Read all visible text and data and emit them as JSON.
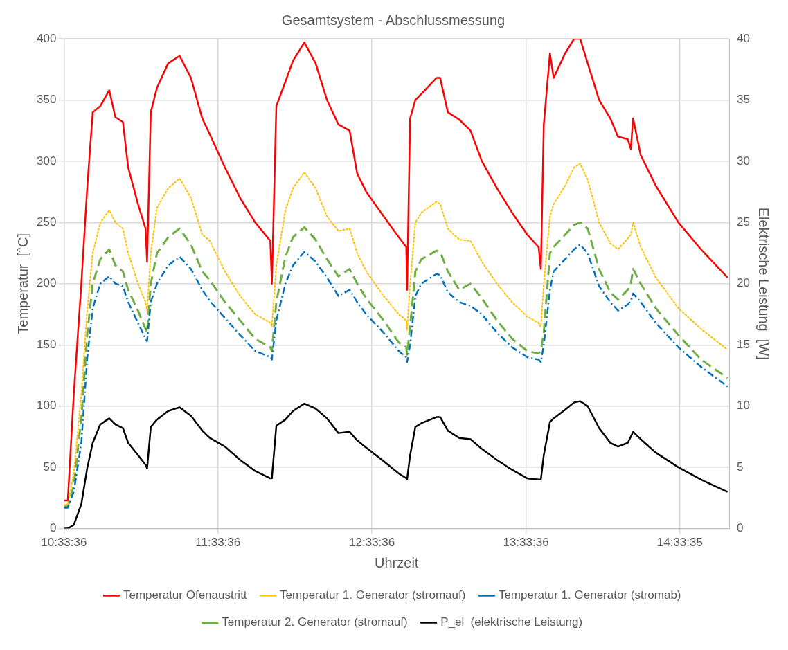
{
  "chart_data": {
    "type": "line",
    "title": "Gesamtsystem - Abschlussmessung",
    "xlabel": "Uhrzeit",
    "ylabel": "Temperatur  [°C]",
    "y2label": "Elektrische Leistung  [W]",
    "x": [
      10.56,
      10.585,
      10.624,
      10.673,
      10.712,
      10.747,
      10.796,
      10.854,
      10.894,
      10.943,
      10.977,
      11.041,
      11.09,
      11.1,
      11.124,
      11.164,
      11.237,
      11.311,
      11.385,
      11.458,
      11.507,
      11.605,
      11.704,
      11.802,
      11.9,
      11.91,
      11.939,
      11.998,
      12.047,
      12.121,
      12.194,
      12.268,
      12.342,
      12.415,
      12.464,
      12.523,
      12.636,
      12.734,
      12.783,
      12.788,
      12.808,
      12.842,
      12.881,
      12.979,
      13.003,
      13.053,
      13.127,
      13.2,
      13.274,
      13.372,
      13.47,
      13.569,
      13.642,
      13.657,
      13.676,
      13.716,
      13.74,
      13.814,
      13.873,
      13.912,
      13.961,
      14.035,
      14.108,
      14.158,
      14.221,
      14.241,
      14.256,
      14.305,
      14.403,
      14.55,
      14.697,
      14.869
    ],
    "series": [
      {
        "name": "Temperatur Ofenaustritt",
        "color": "#ff0000",
        "line_style": "solid",
        "values": [
          23,
          23,
          110,
          200,
          280,
          340,
          345,
          358,
          336,
          332,
          295,
          265,
          245,
          218,
          340,
          360,
          380,
          386,
          368,
          335,
          322,
          295,
          270,
          250,
          235,
          200,
          345,
          365,
          382,
          397,
          380,
          350,
          330,
          325,
          290,
          275,
          255,
          238,
          230,
          195,
          335,
          350,
          355,
          368,
          368,
          340,
          334,
          325,
          300,
          278,
          258,
          240,
          230,
          212,
          330,
          388,
          368,
          388,
          400,
          400,
          380,
          350,
          335,
          320,
          318,
          310,
          335,
          305,
          280,
          250,
          228,
          205
        ]
      },
      {
        "name": "Temperatur 1. Generator (stromauf)",
        "color": "#ffc000",
        "line_style": "dotted",
        "values": [
          19,
          20,
          45,
          110,
          180,
          225,
          250,
          260,
          250,
          245,
          225,
          200,
          185,
          178,
          225,
          262,
          278,
          286,
          270,
          240,
          235,
          210,
          190,
          175,
          168,
          165,
          215,
          260,
          278,
          291,
          278,
          255,
          243,
          245,
          225,
          210,
          190,
          175,
          170,
          162,
          200,
          250,
          258,
          267,
          265,
          245,
          236,
          235,
          218,
          200,
          185,
          173,
          168,
          165,
          200,
          255,
          265,
          280,
          295,
          298,
          285,
          250,
          233,
          228,
          237,
          240,
          250,
          230,
          205,
          180,
          163,
          146
        ]
      },
      {
        "name": "Temperatur 1. Generator (stromab)",
        "color": "#0070c0",
        "line_style": "dashdot",
        "values": [
          17,
          17,
          30,
          70,
          140,
          180,
          200,
          206,
          200,
          198,
          185,
          168,
          155,
          153,
          185,
          200,
          215,
          222,
          212,
          195,
          186,
          172,
          158,
          145,
          140,
          138,
          170,
          200,
          215,
          226,
          218,
          205,
          190,
          195,
          185,
          175,
          160,
          145,
          140,
          136,
          150,
          190,
          200,
          208,
          207,
          193,
          185,
          182,
          175,
          160,
          148,
          140,
          138,
          136,
          150,
          195,
          210,
          220,
          228,
          232,
          225,
          198,
          185,
          178,
          183,
          186,
          192,
          185,
          168,
          148,
          132,
          116
        ]
      },
      {
        "name": "Temperatur 2. Generator (stromauf)",
        "color": "#70ad47",
        "line_style": "dashed",
        "values": [
          18,
          18,
          35,
          90,
          160,
          200,
          220,
          228,
          215,
          210,
          195,
          178,
          163,
          160,
          200,
          225,
          238,
          245,
          232,
          210,
          203,
          185,
          170,
          155,
          148,
          145,
          185,
          222,
          238,
          246,
          236,
          220,
          206,
          212,
          200,
          188,
          170,
          152,
          148,
          142,
          165,
          210,
          220,
          227,
          226,
          210,
          195,
          200,
          188,
          170,
          155,
          145,
          143,
          145,
          160,
          225,
          230,
          240,
          248,
          250,
          245,
          212,
          193,
          187,
          195,
          200,
          212,
          200,
          180,
          158,
          138,
          123
        ]
      },
      {
        "name": "P_el  (elektrische Leistung)",
        "color": "#000000",
        "line_style": "solid",
        "axis": "y2",
        "values": [
          0,
          0,
          0.3,
          2,
          5,
          7,
          8.5,
          9,
          8.5,
          8.2,
          7,
          6,
          5.2,
          4.9,
          8.3,
          8.9,
          9.6,
          9.9,
          9.2,
          8,
          7.4,
          6.7,
          5.6,
          4.7,
          4.1,
          4.1,
          8.4,
          8.9,
          9.6,
          10.2,
          9.8,
          9,
          7.8,
          7.9,
          7.2,
          6.6,
          5.5,
          4.5,
          4.1,
          4,
          6,
          8.3,
          8.6,
          9.1,
          9.1,
          8,
          7.4,
          7.3,
          6.5,
          5.6,
          4.8,
          4.1,
          4,
          4,
          6,
          8.7,
          9,
          9.7,
          10.3,
          10.4,
          10,
          8.2,
          7,
          6.7,
          7,
          7.5,
          7.9,
          7.3,
          6.2,
          5,
          4,
          3
        ]
      }
    ],
    "xlim": [
      10.56,
      14.88
    ],
    "xticks": [
      {
        "value": 10.56,
        "label": "10:33:36"
      },
      {
        "value": 11.56,
        "label": "11:33:36"
      },
      {
        "value": 12.56,
        "label": "12:33:36"
      },
      {
        "value": 13.56,
        "label": "13:33:36"
      },
      {
        "value": 14.5597,
        "label": "14:33:35"
      }
    ],
    "ylim": [
      0,
      400
    ],
    "yticks": [
      0,
      50,
      100,
      150,
      200,
      250,
      300,
      350,
      400
    ],
    "y2lim": [
      0,
      40
    ],
    "y2ticks": [
      0,
      5,
      10,
      15,
      20,
      25,
      30,
      35,
      40
    ],
    "grid": true,
    "legend": "bottom",
    "marker": "none"
  }
}
